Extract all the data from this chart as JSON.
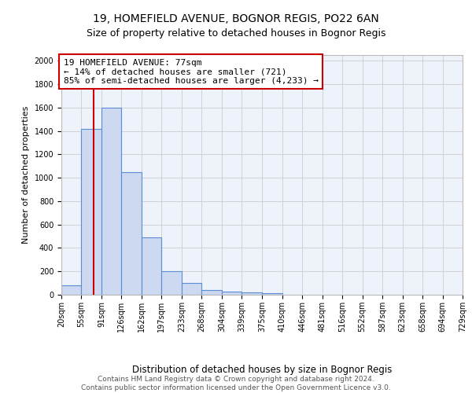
{
  "title1": "19, HOMEFIELD AVENUE, BOGNOR REGIS, PO22 6AN",
  "title2": "Size of property relative to detached houses in Bognor Regis",
  "xlabel": "Distribution of detached houses by size in Bognor Regis",
  "ylabel": "Number of detached properties",
  "bar_values": [
    80,
    1420,
    1600,
    1050,
    490,
    205,
    100,
    40,
    25,
    20,
    15
  ],
  "bin_edges": [
    20,
    55,
    91,
    126,
    162,
    197,
    233,
    268,
    304,
    339,
    375,
    410
  ],
  "extended_bins": [
    446,
    481,
    516,
    552,
    587,
    623,
    658,
    694,
    729
  ],
  "x_tick_labels": [
    "20sqm",
    "55sqm",
    "91sqm",
    "126sqm",
    "162sqm",
    "197sqm",
    "233sqm",
    "268sqm",
    "304sqm",
    "339sqm",
    "375sqm",
    "410sqm",
    "446sqm",
    "481sqm",
    "516sqm",
    "552sqm",
    "587sqm",
    "623sqm",
    "658sqm",
    "694sqm",
    "729sqm"
  ],
  "property_size": 77,
  "bar_color": "#ccd9f0",
  "bar_edge_color": "#5b8dd4",
  "red_line_color": "#cc0000",
  "annotation_line1": "19 HOMEFIELD AVENUE: 77sqm",
  "annotation_line2": "← 14% of detached houses are smaller (721)",
  "annotation_line3": "85% of semi-detached houses are larger (4,233) →",
  "annotation_box_color": "#ffffff",
  "annotation_box_edge": "#cc0000",
  "grid_color": "#cccccc",
  "background_color": "#eef2fb",
  "ylim": [
    0,
    2050
  ],
  "yticks": [
    0,
    200,
    400,
    600,
    800,
    1000,
    1200,
    1400,
    1600,
    1800,
    2000
  ],
  "footer_text": "Contains HM Land Registry data © Crown copyright and database right 2024.\nContains public sector information licensed under the Open Government Licence v3.0.",
  "title1_fontsize": 10,
  "title2_fontsize": 9,
  "xlabel_fontsize": 8.5,
  "ylabel_fontsize": 8,
  "tick_fontsize": 7,
  "annotation_fontsize": 8,
  "footer_fontsize": 6.5
}
